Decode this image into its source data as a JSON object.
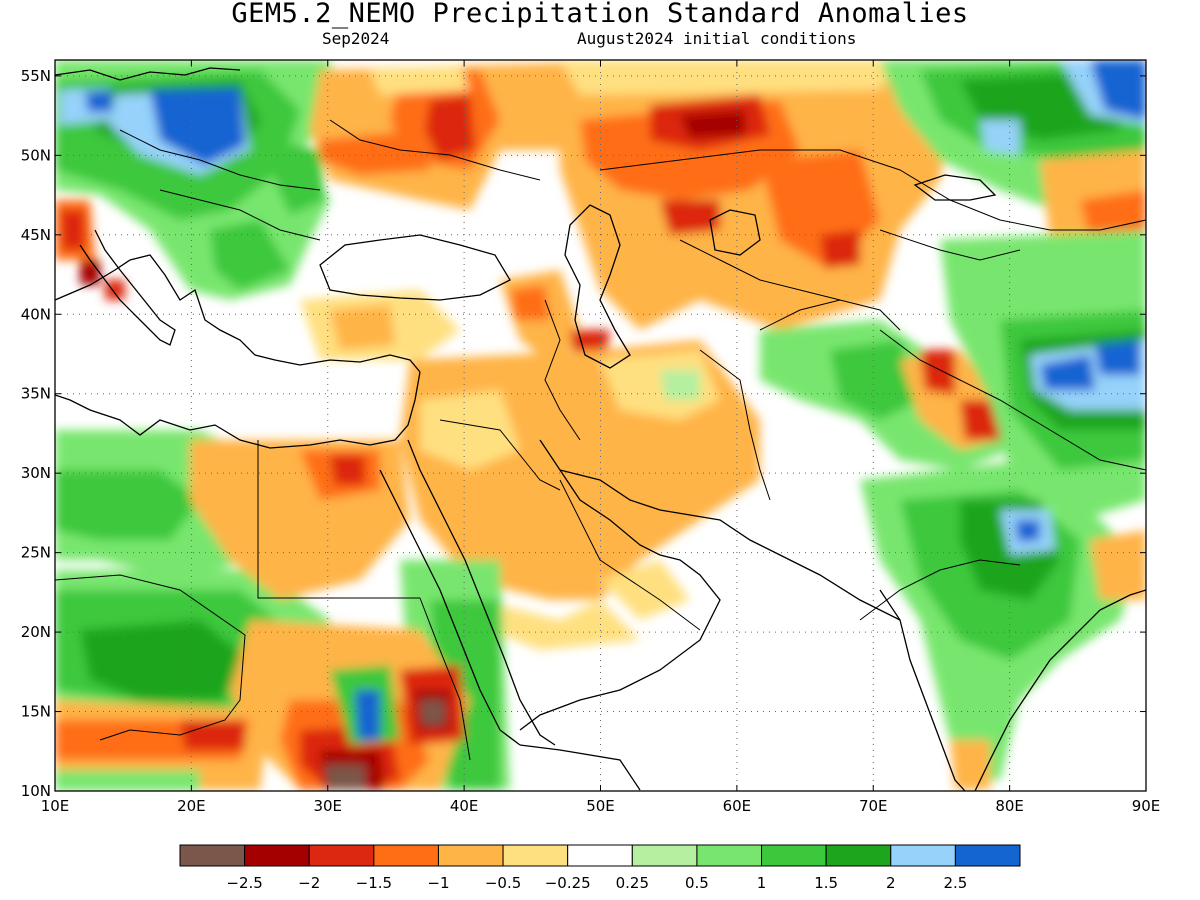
{
  "header": {
    "title": "GEM5.2_NEMO Precipitation Standard Anomalies",
    "valid_month": "Sep2024",
    "initial_conditions": "August2024 initial conditions"
  },
  "axes": {
    "lon_ticks": [
      "10E",
      "20E",
      "30E",
      "40E",
      "50E",
      "60E",
      "70E",
      "80E",
      "90E"
    ],
    "lat_ticks": [
      "10N",
      "15N",
      "20N",
      "25N",
      "30N",
      "35N",
      "40N",
      "45N",
      "50N",
      "55N"
    ],
    "lon_range": [
      10,
      90
    ],
    "lat_range": [
      10,
      56
    ],
    "grid": "dotted"
  },
  "colorbar": {
    "colors": [
      "#7a574a",
      "#a50000",
      "#dc2810",
      "#ff6e14",
      "#ffb446",
      "#ffe080",
      "#ffffff",
      "#b4f0a0",
      "#78e66e",
      "#3cc83c",
      "#1ea51e",
      "#96d2fa",
      "#1464d2"
    ],
    "labels": [
      "−2.5",
      "−2",
      "−1.5",
      "−1",
      "−0.5",
      "−0.25",
      "0.25",
      "0.5",
      "1",
      "1.5",
      "2",
      "2.5"
    ]
  },
  "map_fields": {
    "palette": {
      "c-2.5": "#7a574a",
      "c-2": "#a50000",
      "c-1.5": "#dc2810",
      "c-1": "#ff6e14",
      "c-0.5": "#ffb446",
      "c-0.25": "#ffe080",
      "c0": "#ffffff",
      "c0.25": "#b4f0a0",
      "c0.5": "#78e66e",
      "c1": "#3cc83c",
      "c1.5": "#1ea51e",
      "c2": "#96d2fa",
      "c2.5": "#1464d2"
    }
  }
}
